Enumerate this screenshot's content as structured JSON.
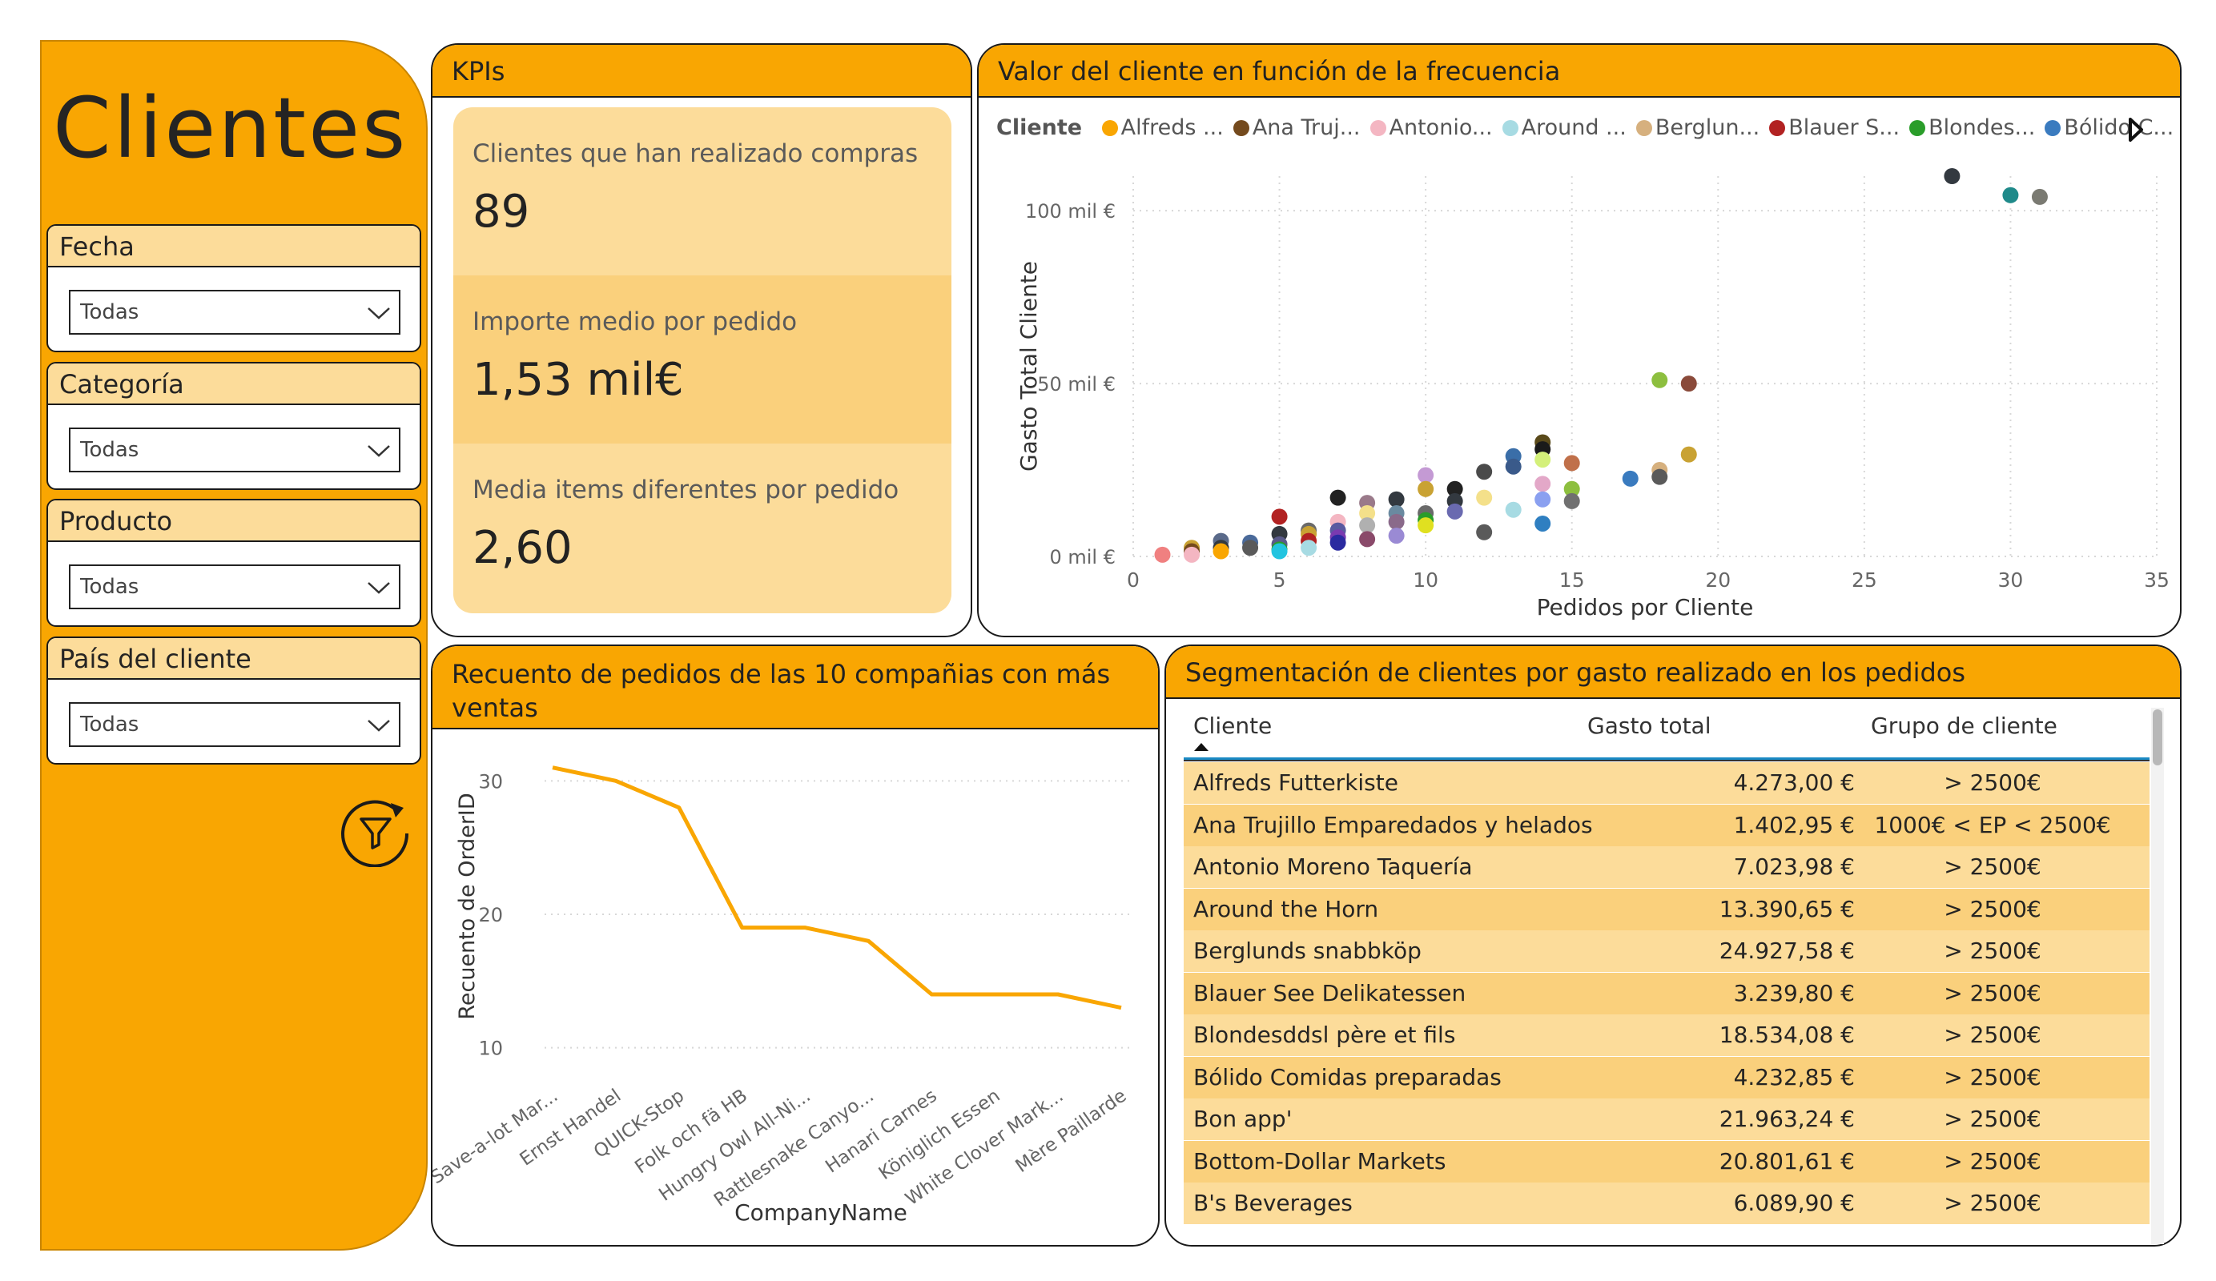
{
  "sidebar": {
    "title": "Clientes",
    "slicers": [
      {
        "label": "Fecha",
        "value": "Todas"
      },
      {
        "label": "Categoría",
        "value": "Todas"
      },
      {
        "label": "Producto",
        "value": "Todas"
      },
      {
        "label": "País del cliente",
        "value": "Todas"
      }
    ]
  },
  "kpis": {
    "title": "KPIs",
    "cards": [
      {
        "label": "Clientes que han realizado compras",
        "value": "89"
      },
      {
        "label": "Importe medio por pedido",
        "value": "1,53 mil€"
      },
      {
        "label": "Media items diferentes por pedido",
        "value": "2,60"
      }
    ]
  },
  "scatter": {
    "title": "Valor del cliente en función de la frecuencia",
    "legend_title": "Cliente",
    "legend": [
      {
        "name": "Alfreds ...",
        "color": "#f9a602"
      },
      {
        "name": "Ana Truj...",
        "color": "#744a1d"
      },
      {
        "name": "Antonio...",
        "color": "#f4b6c2"
      },
      {
        "name": "Around ...",
        "color": "#a7dbe3"
      },
      {
        "name": "Berglun...",
        "color": "#d6b07e"
      },
      {
        "name": "Blauer S...",
        "color": "#b22222"
      },
      {
        "name": "Blondes...",
        "color": "#2a9d2a"
      },
      {
        "name": "Bólido C...",
        "color": "#3a7bbf"
      }
    ]
  },
  "chart_data": [
    {
      "type": "scatter",
      "xlabel": "Pedidos por Cliente",
      "ylabel": "Gasto Total Cliente",
      "xlim": [
        0,
        35
      ],
      "ylim": [
        0,
        110000
      ],
      "xticks": [
        "0",
        "5",
        "10",
        "15",
        "20",
        "25",
        "30",
        "35"
      ],
      "yticks": [
        {
          "value": 0,
          "label": "0 mil €"
        },
        {
          "value": 50000,
          "label": "50 mil €"
        },
        {
          "value": 100000,
          "label": "100 mil €"
        }
      ],
      "grid": true,
      "points": [
        {
          "x": 28,
          "y": 110000,
          "color": "#333940"
        },
        {
          "x": 30,
          "y": 104500,
          "color": "#1f8a8a"
        },
        {
          "x": 31,
          "y": 104000,
          "color": "#7a7a72"
        },
        {
          "x": 18,
          "y": 51000,
          "color": "#8dbf3f"
        },
        {
          "x": 19,
          "y": 50000,
          "color": "#8a4a3a"
        },
        {
          "x": 19,
          "y": 29500,
          "color": "#c9a233"
        },
        {
          "x": 18,
          "y": 25000,
          "color": "#d6b07e"
        },
        {
          "x": 18,
          "y": 23000,
          "color": "#5a5a5a"
        },
        {
          "x": 17,
          "y": 22500,
          "color": "#3a7bbf"
        },
        {
          "x": 15,
          "y": 27000,
          "color": "#c0704a"
        },
        {
          "x": 15,
          "y": 19500,
          "color": "#8dbf3f"
        },
        {
          "x": 15,
          "y": 16000,
          "color": "#707070"
        },
        {
          "x": 14,
          "y": 33000,
          "color": "#5a4a1a"
        },
        {
          "x": 14,
          "y": 31000,
          "color": "#1a1a1a"
        },
        {
          "x": 14,
          "y": 28000,
          "color": "#d4f07a"
        },
        {
          "x": 14,
          "y": 21000,
          "color": "#e3a8c8"
        },
        {
          "x": 14,
          "y": 16500,
          "color": "#8aa0f0"
        },
        {
          "x": 14,
          "y": 9500,
          "color": "#2f7fc1"
        },
        {
          "x": 13,
          "y": 29000,
          "color": "#3a6ea8"
        },
        {
          "x": 13,
          "y": 26000,
          "color": "#3a5a8a"
        },
        {
          "x": 13,
          "y": 13500,
          "color": "#a7dbe3"
        },
        {
          "x": 12,
          "y": 24500,
          "color": "#4a4a4a"
        },
        {
          "x": 12,
          "y": 17000,
          "color": "#f4e08a"
        },
        {
          "x": 12,
          "y": 7000,
          "color": "#5a5a5a"
        },
        {
          "x": 11,
          "y": 19500,
          "color": "#222222"
        },
        {
          "x": 11,
          "y": 16000,
          "color": "#333940"
        },
        {
          "x": 11,
          "y": 13000,
          "color": "#6a6ab0"
        },
        {
          "x": 10,
          "y": 23500,
          "color": "#c49ad4"
        },
        {
          "x": 10,
          "y": 19500,
          "color": "#c9a233"
        },
        {
          "x": 10,
          "y": 12500,
          "color": "#6a6a6a"
        },
        {
          "x": 10,
          "y": 10500,
          "color": "#2a9d2a"
        },
        {
          "x": 10,
          "y": 9000,
          "color": "#e0e020"
        },
        {
          "x": 9,
          "y": 16500,
          "color": "#333940"
        },
        {
          "x": 9,
          "y": 12500,
          "color": "#6a8aa0"
        },
        {
          "x": 9,
          "y": 10000,
          "color": "#8a6a8a"
        },
        {
          "x": 9,
          "y": 6000,
          "color": "#9a8ad4"
        },
        {
          "x": 8,
          "y": 15500,
          "color": "#9a7a8a"
        },
        {
          "x": 8,
          "y": 12500,
          "color": "#f4e08a"
        },
        {
          "x": 8,
          "y": 9000,
          "color": "#b0b0b0"
        },
        {
          "x": 8,
          "y": 5000,
          "color": "#8a4a6a"
        },
        {
          "x": 7,
          "y": 17000,
          "color": "#222222"
        },
        {
          "x": 7,
          "y": 10000,
          "color": "#f4b6c2"
        },
        {
          "x": 7,
          "y": 7500,
          "color": "#5a5aa0"
        },
        {
          "x": 7,
          "y": 5500,
          "color": "#7a3ab0"
        },
        {
          "x": 7,
          "y": 4000,
          "color": "#2a2aa0"
        },
        {
          "x": 6,
          "y": 7500,
          "color": "#6a6a6a"
        },
        {
          "x": 6,
          "y": 6500,
          "color": "#c9a233"
        },
        {
          "x": 6,
          "y": 4500,
          "color": "#b22222"
        },
        {
          "x": 6,
          "y": 2500,
          "color": "#a7dbe3"
        },
        {
          "x": 5,
          "y": 11500,
          "color": "#b22222"
        },
        {
          "x": 5,
          "y": 6500,
          "color": "#333940"
        },
        {
          "x": 5,
          "y": 3500,
          "color": "#5a5a8a"
        },
        {
          "x": 5,
          "y": 2000,
          "color": "#2a9d2a"
        },
        {
          "x": 5,
          "y": 1500,
          "color": "#22c4e0"
        },
        {
          "x": 4,
          "y": 4000,
          "color": "#4a6a9a"
        },
        {
          "x": 4,
          "y": 2500,
          "color": "#5a5a5a"
        },
        {
          "x": 3,
          "y": 4500,
          "color": "#5a6a8a"
        },
        {
          "x": 3,
          "y": 2500,
          "color": "#333940"
        },
        {
          "x": 3,
          "y": 1500,
          "color": "#f9a602"
        },
        {
          "x": 2,
          "y": 2500,
          "color": "#c9a233"
        },
        {
          "x": 2,
          "y": 1500,
          "color": "#744a1d"
        },
        {
          "x": 2,
          "y": 500,
          "color": "#f4b6c2"
        },
        {
          "x": 1,
          "y": 500,
          "color": "#f08080"
        }
      ]
    },
    {
      "type": "line",
      "xlabel": "CompanyName",
      "ylabel": "Recuento de OrderID",
      "ylim": [
        8,
        32
      ],
      "yticks": [
        10,
        20,
        30
      ],
      "grid": true,
      "categories": [
        "Save-a-lot Mar...",
        "Ernst Handel",
        "QUICK-Stop",
        "Folk och fä HB",
        "Hungry Owl All-Ni...",
        "Rattlesnake Canyo...",
        "Hanari Carnes",
        "Königlich Essen",
        "White Clover Mark...",
        "Mère Paillarde"
      ],
      "values": [
        31,
        30,
        28,
        19,
        19,
        18,
        14,
        14,
        14,
        13
      ],
      "color": "#f9a602"
    }
  ],
  "line_panel": {
    "title": "Recuento de pedidos de las 10 compañias con más ventas"
  },
  "table": {
    "title": "Segmentación de clientes por gasto realizado en los pedidos",
    "headers": [
      "Cliente",
      "Gasto total",
      "Grupo de cliente"
    ],
    "rows": [
      [
        "Alfreds Futterkiste",
        "4.273,00 €",
        "> 2500€"
      ],
      [
        "Ana Trujillo Emparedados y helados",
        "1.402,95 €",
        "1000€ < EP < 2500€"
      ],
      [
        "Antonio Moreno Taquería",
        "7.023,98 €",
        "> 2500€"
      ],
      [
        "Around the Horn",
        "13.390,65 €",
        "> 2500€"
      ],
      [
        "Berglunds snabbköp",
        "24.927,58 €",
        "> 2500€"
      ],
      [
        "Blauer See Delikatessen",
        "3.239,80 €",
        "> 2500€"
      ],
      [
        "Blondesddsl père et fils",
        "18.534,08 €",
        "> 2500€"
      ],
      [
        "Bólido Comidas preparadas",
        "4.232,85 €",
        "> 2500€"
      ],
      [
        "Bon app'",
        "21.963,24 €",
        "> 2500€"
      ],
      [
        "Bottom-Dollar Markets",
        "20.801,61 €",
        "> 2500€"
      ],
      [
        "B's Beverages",
        "6.089,90 €",
        "> 2500€"
      ]
    ],
    "row_colors": [
      "#fcdc9a",
      "#fad07c"
    ]
  }
}
